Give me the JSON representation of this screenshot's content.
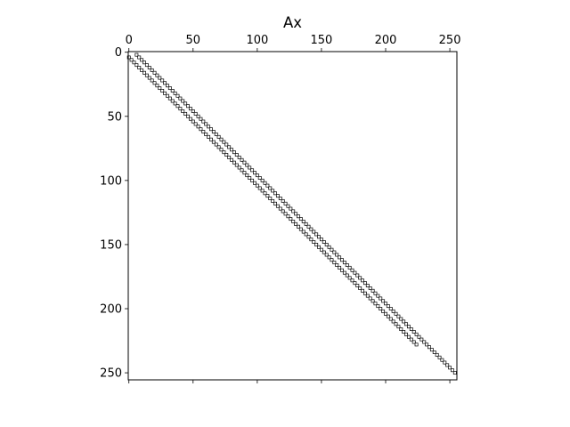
{
  "chart_data": {
    "type": "scatter",
    "title": "Ax",
    "xlabel": "",
    "ylabel": "",
    "xlim": [
      -0.5,
      255.5
    ],
    "ylim": [
      255.5,
      -0.5
    ],
    "x_axis_position": "top",
    "y_axis_inverted": true,
    "x_ticks": [
      0,
      50,
      100,
      150,
      200,
      250
    ],
    "y_ticks": [
      0,
      50,
      100,
      150,
      200,
      250
    ],
    "x_tick_labels": [
      "0",
      "50",
      "100",
      "150",
      "200",
      "250"
    ],
    "y_tick_labels": [
      "0",
      "50",
      "100",
      "150",
      "200",
      "250"
    ],
    "grid": false,
    "legend": "none",
    "marker": "open-square",
    "colors": {
      "marker_edge": "#000000",
      "marker_face": "#ffffff",
      "axes": "#000000",
      "background": "#ffffff"
    },
    "series": [
      {
        "pattern": "row = column + offset",
        "offset": 4,
        "column_range": [
          0,
          224
        ],
        "column_step": 2
      },
      {
        "pattern": "row = column - offset",
        "offset": 4,
        "column_range": [
          6,
          255
        ],
        "column_step": 2
      }
    ]
  }
}
